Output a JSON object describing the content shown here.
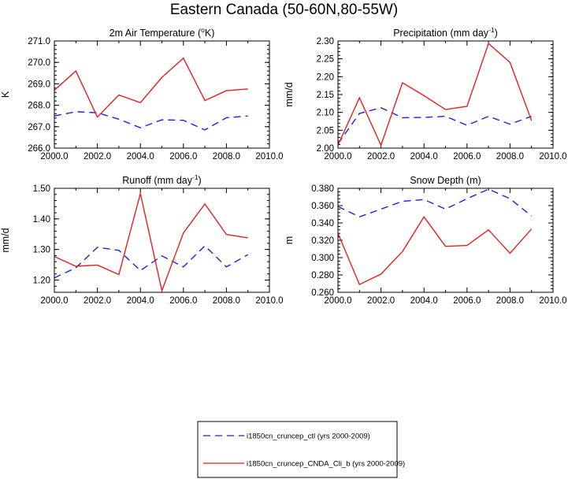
{
  "figure": {
    "title": "Eastern Canada (50-60N,80-55W)"
  },
  "legend": {
    "items": [
      {
        "label": "i1850cn_cruncep_ctl (yrs 2000-2009)",
        "color": "#1f1fe6",
        "dash": "dashed"
      },
      {
        "label": "i1850cn_cruncep_CNDA_Cli_b (yrs 2000-2009)",
        "color": "#e61f1f",
        "dash": "solid"
      }
    ]
  },
  "chart_data": [
    {
      "type": "line",
      "title": "2m Air Temperature (",
      "title_sup": "o",
      "title_tail": "K)",
      "xlabel": "",
      "ylabel": "K",
      "xlim": [
        2000,
        2010
      ],
      "ylim": [
        266.0,
        271.0
      ],
      "xticks": [
        "2000.0",
        "2002.0",
        "2004.0",
        "2006.0",
        "2008.0",
        "2010.0"
      ],
      "yticks": [
        "266.0",
        "267.0",
        "268.0",
        "269.0",
        "270.0",
        "271.0"
      ],
      "x": [
        2000,
        2001,
        2002,
        2003,
        2004,
        2005,
        2006,
        2007,
        2008,
        2009
      ],
      "series": [
        {
          "name": "i1850cn_cruncep_ctl (yrs 2000-2009)",
          "color": "#1f1fe6",
          "dash": "dashed",
          "values": [
            267.5,
            267.7,
            267.65,
            267.35,
            266.95,
            267.32,
            267.3,
            266.85,
            267.42,
            267.5
          ]
        },
        {
          "name": "i1850cn_cruncep_CNDA_Cli_b (yrs 2000-2009)",
          "color": "#e61f1f",
          "dash": "solid",
          "values": [
            268.7,
            269.6,
            267.45,
            268.48,
            268.12,
            269.3,
            270.2,
            268.22,
            268.68,
            268.76
          ]
        }
      ]
    },
    {
      "type": "line",
      "title": "Precipitation (mm day",
      "title_sup": "-1",
      "title_tail": ")",
      "xlabel": "",
      "ylabel": "mm/d",
      "xlim": [
        2000,
        2010
      ],
      "ylim": [
        2.0,
        2.3
      ],
      "xticks": [
        "2000.0",
        "2002.0",
        "2004.0",
        "2006.0",
        "2008.0",
        "2010.0"
      ],
      "yticks": [
        "2.00",
        "2.05",
        "2.10",
        "2.15",
        "2.20",
        "2.25",
        "2.30"
      ],
      "x": [
        2000,
        2001,
        2002,
        2003,
        2004,
        2005,
        2006,
        2007,
        2008,
        2009
      ],
      "series": [
        {
          "name": "i1850cn_cruncep_ctl (yrs 2000-2009)",
          "color": "#1f1fe6",
          "dash": "dashed",
          "values": [
            2.012,
            2.097,
            2.113,
            2.085,
            2.086,
            2.089,
            2.064,
            2.089,
            2.067,
            2.089
          ]
        },
        {
          "name": "i1850cn_cruncep_CNDA_Cli_b (yrs 2000-2009)",
          "color": "#e61f1f",
          "dash": "solid",
          "values": [
            2.008,
            2.141,
            2.008,
            2.183,
            2.147,
            2.108,
            2.117,
            2.293,
            2.24,
            2.077
          ]
        }
      ]
    },
    {
      "type": "line",
      "title": "Runoff (mm day",
      "title_sup": "-1",
      "title_tail": ")",
      "xlabel": "",
      "ylabel": "mm/d",
      "xlim": [
        2000,
        2010
      ],
      "ylim": [
        1.16,
        1.5
      ],
      "xticks": [
        "2000.0",
        "2002.0",
        "2004.0",
        "2006.0",
        "2008.0",
        "2010.0"
      ],
      "yticks": [
        "1.20",
        "1.30",
        "1.40",
        "1.50"
      ],
      "x": [
        2000,
        2001,
        2002,
        2003,
        2004,
        2005,
        2006,
        2007,
        2008,
        2009
      ],
      "series": [
        {
          "name": "i1850cn_cruncep_ctl (yrs 2000-2009)",
          "color": "#1f1fe6",
          "dash": "dashed",
          "values": [
            1.207,
            1.24,
            1.307,
            1.297,
            1.231,
            1.279,
            1.243,
            1.312,
            1.243,
            1.283
          ]
        },
        {
          "name": "i1850cn_cruncep_CNDA_Cli_b (yrs 2000-2009)",
          "color": "#e61f1f",
          "dash": "solid",
          "values": [
            1.277,
            1.245,
            1.249,
            1.218,
            1.483,
            1.165,
            1.354,
            1.449,
            1.349,
            1.338
          ]
        }
      ]
    },
    {
      "type": "line",
      "title": "Snow Depth (m)",
      "title_sup": "",
      "title_tail": "",
      "xlabel": "",
      "ylabel": "m",
      "xlim": [
        2000,
        2010
      ],
      "ylim": [
        0.26,
        0.38
      ],
      "xticks": [
        "2000.0",
        "2002.0",
        "2004.0",
        "2006.0",
        "2008.0",
        "2010.0"
      ],
      "yticks": [
        "0.260",
        "0.280",
        "0.300",
        "0.320",
        "0.340",
        "0.360",
        "0.380"
      ],
      "x": [
        2000,
        2001,
        2002,
        2003,
        2004,
        2005,
        2006,
        2007,
        2008,
        2009
      ],
      "series": [
        {
          "name": "i1850cn_cruncep_ctl (yrs 2000-2009)",
          "color": "#1f1fe6",
          "dash": "dashed",
          "values": [
            0.359,
            0.347,
            0.356,
            0.365,
            0.367,
            0.356,
            0.368,
            0.379,
            0.368,
            0.348
          ]
        },
        {
          "name": "i1850cn_cruncep_CNDA_Cli_b (yrs 2000-2009)",
          "color": "#e61f1f",
          "dash": "solid",
          "values": [
            0.328,
            0.269,
            0.281,
            0.307,
            0.347,
            0.313,
            0.314,
            0.332,
            0.305,
            0.333
          ]
        }
      ]
    }
  ]
}
